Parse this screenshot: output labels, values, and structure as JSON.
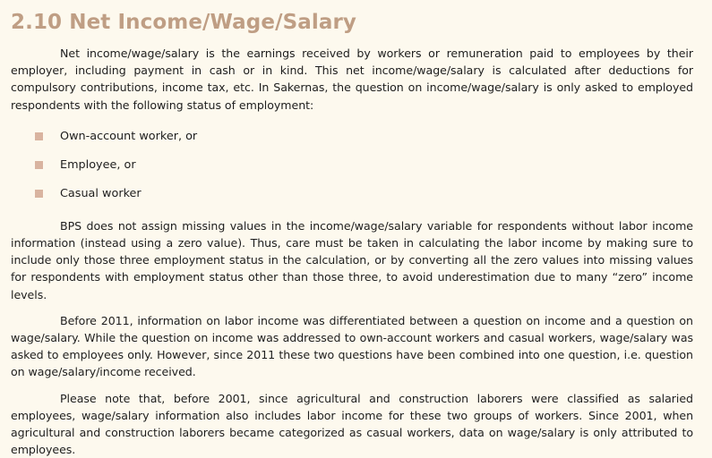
{
  "section": {
    "title": "2.10 Net Income/Wage/Salary"
  },
  "paragraphs": [
    "Net income/wage/salary is the earnings received by workers or remuneration paid to employees by their employer, including payment in cash or in kind. This net income/wage/salary is calculated after deductions for compulsory contributions, income tax, etc. In Sakernas, the question on income/wage/salary is only asked to employed respondents with the following status of employment:",
    "BPS does not assign missing values in the income/wage/salary variable for respondents without labor income information (instead using a zero value). Thus, care must be taken in calculating the labor income by making sure to include only those three employment status in the calculation, or by converting all the zero values into missing values for respondents with employment status other than those three, to avoid underestimation due to many “zero” income levels.",
    "Before 2011, information on labor income was differentiated between a question on income and a question on wage/salary. While the question on income was addressed to own-account workers and casual workers, wage/salary was asked to employees only. However, since 2011 these two questions have been combined into one question, i.e. question on wage/salary/income received.",
    "Please note that, before 2001, since agricultural and construction laborers were classified as salaried employees, wage/salary information also includes labor income for these two groups of workers. Since 2001, when agricultural and construction laborers became categorized as casual workers, data on wage/salary is only attributed to employees."
  ],
  "bullets": [
    "Own-account worker, or",
    "Employee, or",
    "Casual worker"
  ],
  "colors": {
    "title": "#bf9e84",
    "bullet_marker": "#d9b4a0",
    "background": "#fdf9ee"
  }
}
